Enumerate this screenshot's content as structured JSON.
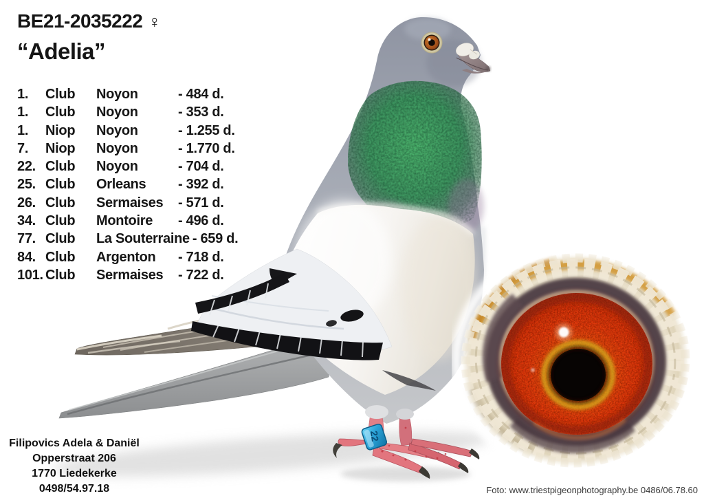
{
  "header": {
    "ring_number": "BE21-2035222",
    "sex_symbol": "♀",
    "pigeon_name": "“Adelia”"
  },
  "results": [
    {
      "position": "1.",
      "category": "Club",
      "race": "Noyon",
      "distance": "- 484 d."
    },
    {
      "position": "1.",
      "category": "Club",
      "race": "Noyon",
      "distance": "- 353 d."
    },
    {
      "position": "1.",
      "category": "Niop",
      "race": "Noyon",
      "distance": "- 1.255 d."
    },
    {
      "position": "7.",
      "category": "Niop",
      "race": "Noyon",
      "distance": "- 1.770 d."
    },
    {
      "position": "22.",
      "category": "Club",
      "race": "Noyon",
      "distance": "- 704 d."
    },
    {
      "position": "25.",
      "category": "Club",
      "race": "Orleans",
      "distance": "- 392 d."
    },
    {
      "position": "26.",
      "category": "Club",
      "race": "Sermaises",
      "distance": "- 571 d."
    },
    {
      "position": "34.",
      "category": "Club",
      "race": "Montoire",
      "distance": "- 496 d."
    },
    {
      "position": "77.",
      "category": "Club",
      "race": "La Souterraine",
      "distance": "- 659 d."
    },
    {
      "position": "84.",
      "category": "Club",
      "race": "Argenton",
      "distance": "- 718 d."
    },
    {
      "position": "101.",
      "category": "Club",
      "race": "Sermaises",
      "distance": "- 722 d."
    }
  ],
  "breeder": {
    "lines": [
      "Filipovics Adela & Daniël",
      "Opperstraat 206",
      "1770 Liedekerke",
      "0498/54.97.18"
    ]
  },
  "photo_credit": "Foto: www.triestpigeonphotography.be 0486/06.78.60",
  "pigeon_photo": {
    "ring_band_text": "22"
  },
  "colors": {
    "ring_band_blue": "#2aa7dd",
    "eye_iris_orange": "#dd3a0a",
    "neck_green": "#35a45c",
    "wing_bar_black": "#151518"
  }
}
